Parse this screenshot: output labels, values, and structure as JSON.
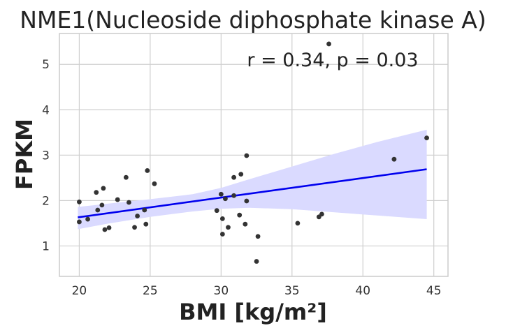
{
  "chart_data": {
    "type": "scatter",
    "title": "NME1(Nucleoside diphosphate kinase A)",
    "xlabel": "BMI [kg/m²]",
    "ylabel": "FPKM",
    "annotation": "r = 0.34, p = 0.03",
    "xlim": [
      18.6,
      46.0
    ],
    "ylim": [
      0.33,
      5.68
    ],
    "xticks": [
      "20",
      "25",
      "30",
      "35",
      "40",
      "45"
    ],
    "yticks": [
      "1",
      "2",
      "3",
      "4",
      "5"
    ],
    "grid": true,
    "colors": {
      "points": "#333333",
      "line": "#0000ee",
      "band": "#dadaff"
    },
    "points": [
      {
        "x": 20.0,
        "y": 1.97
      },
      {
        "x": 20.0,
        "y": 1.53
      },
      {
        "x": 20.6,
        "y": 1.59
      },
      {
        "x": 21.2,
        "y": 2.18
      },
      {
        "x": 21.3,
        "y": 1.79
      },
      {
        "x": 21.6,
        "y": 1.9
      },
      {
        "x": 21.7,
        "y": 2.27
      },
      {
        "x": 21.8,
        "y": 1.36
      },
      {
        "x": 22.1,
        "y": 1.4
      },
      {
        "x": 22.7,
        "y": 2.02
      },
      {
        "x": 23.3,
        "y": 2.51
      },
      {
        "x": 23.5,
        "y": 1.96
      },
      {
        "x": 23.9,
        "y": 1.41
      },
      {
        "x": 24.1,
        "y": 1.66
      },
      {
        "x": 24.6,
        "y": 1.79
      },
      {
        "x": 24.7,
        "y": 1.48
      },
      {
        "x": 24.8,
        "y": 2.66
      },
      {
        "x": 25.3,
        "y": 2.37
      },
      {
        "x": 29.7,
        "y": 1.78
      },
      {
        "x": 30.0,
        "y": 2.14
      },
      {
        "x": 30.1,
        "y": 1.6
      },
      {
        "x": 30.1,
        "y": 1.26
      },
      {
        "x": 30.3,
        "y": 2.04
      },
      {
        "x": 30.5,
        "y": 1.41
      },
      {
        "x": 30.9,
        "y": 2.51
      },
      {
        "x": 30.9,
        "y": 2.11
      },
      {
        "x": 31.3,
        "y": 1.68
      },
      {
        "x": 31.4,
        "y": 2.58
      },
      {
        "x": 31.7,
        "y": 1.48
      },
      {
        "x": 31.8,
        "y": 2.99
      },
      {
        "x": 31.8,
        "y": 1.99
      },
      {
        "x": 32.5,
        "y": 0.66
      },
      {
        "x": 32.6,
        "y": 1.21
      },
      {
        "x": 35.4,
        "y": 1.5
      },
      {
        "x": 36.9,
        "y": 1.64
      },
      {
        "x": 37.1,
        "y": 1.7
      },
      {
        "x": 37.6,
        "y": 5.45
      },
      {
        "x": 42.2,
        "y": 2.91
      },
      {
        "x": 44.5,
        "y": 3.38
      }
    ],
    "regression": {
      "x": [
        19.9,
        44.5
      ],
      "y": [
        1.63,
        2.69
      ]
    },
    "confidence_band": {
      "x": [
        19.9,
        22.0,
        25.0,
        28.0,
        30.0,
        32.0,
        35.0,
        38.0,
        41.0,
        44.5
      ],
      "upper": [
        1.86,
        1.93,
        2.03,
        2.14,
        2.28,
        2.47,
        2.75,
        3.03,
        3.29,
        3.56
      ],
      "lower": [
        1.37,
        1.49,
        1.64,
        1.76,
        1.82,
        1.84,
        1.81,
        1.74,
        1.67,
        1.59
      ]
    }
  }
}
